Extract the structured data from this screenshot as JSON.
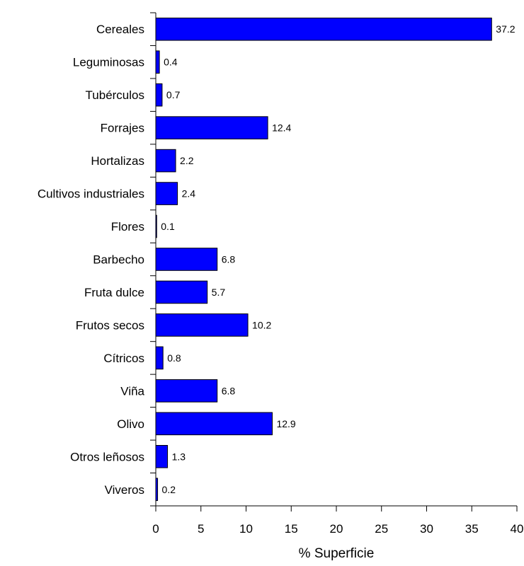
{
  "chart_data": {
    "type": "bar",
    "orientation": "horizontal",
    "categories": [
      "Cereales",
      "Leguminosas",
      "Tubérculos",
      "Forrajes",
      "Hortalizas",
      "Cultivos industriales",
      "Flores",
      "Barbecho",
      "Fruta dulce",
      "Frutos secos",
      "Cítricos",
      "Viña",
      "Olivo",
      "Otros leñosos",
      "Viveros"
    ],
    "values": [
      37.2,
      0.4,
      0.7,
      12.4,
      2.2,
      2.4,
      0.1,
      6.8,
      5.7,
      10.2,
      0.8,
      6.8,
      12.9,
      1.3,
      0.2
    ],
    "value_labels": [
      "37.2",
      "0.4",
      "0.7",
      "12.4",
      "2.2",
      "2.4",
      "0.1",
      "6.8",
      "5.7",
      "10.2",
      "0.8",
      "6.8",
      "12.9",
      "1.3",
      "0.2"
    ],
    "title": "",
    "xlabel": "% Superficie",
    "ylabel": "",
    "xlim": [
      0,
      40
    ],
    "xticks": [
      "0",
      "5",
      "10",
      "15",
      "20",
      "25",
      "30",
      "35",
      "40"
    ],
    "grid": false,
    "legend": "none",
    "bar_color": "#0000ff",
    "bar_edge_color": "#000000"
  }
}
